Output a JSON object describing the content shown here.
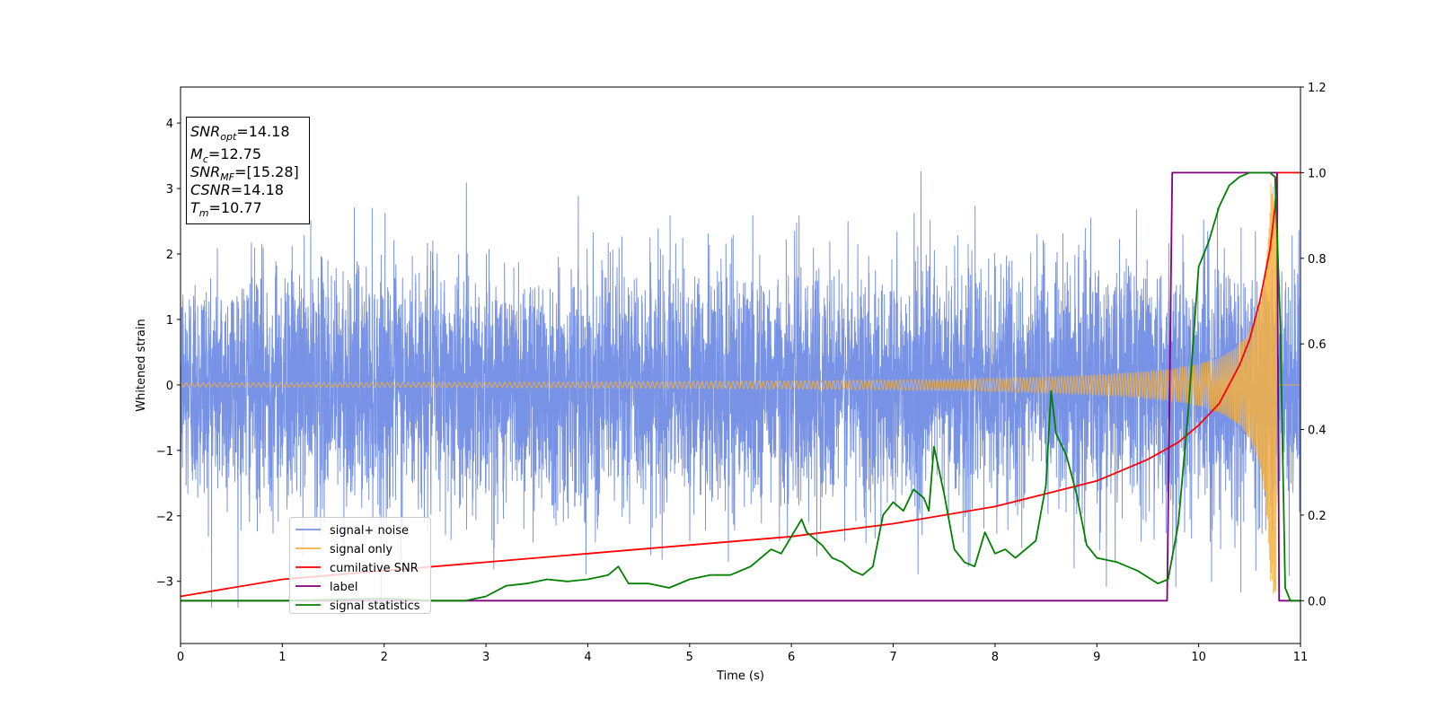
{
  "chart_data": {
    "type": "line",
    "title": "",
    "xlabel": "Time (s)",
    "ylabel": "Whitened strain",
    "xlim": [
      0,
      11
    ],
    "ylim": [
      -3.95,
      4.55
    ],
    "y2lim": [
      -0.1,
      1.2
    ],
    "x_ticks": [
      "0",
      "1",
      "2",
      "3",
      "4",
      "5",
      "6",
      "7",
      "8",
      "9",
      "10",
      "11"
    ],
    "y_ticks": [
      "4",
      "3",
      "2",
      "1",
      "0",
      "−1",
      "−2",
      "−3"
    ],
    "y2_ticks": [
      "1.2",
      "1.0",
      "0.8",
      "0.6",
      "0.4",
      "0.2",
      "0.0"
    ],
    "grid": false,
    "legend_position": "lower-left",
    "series": [
      {
        "name": "signal+ noise",
        "color": "#7893e6",
        "axis": "left",
        "description": "dense noise band, roughly between -2 and 2",
        "noise_std": 0.9,
        "x_range": [
          0,
          11
        ],
        "y_min": -3.4,
        "y_max": 4.18
      },
      {
        "name": "signal only",
        "color": "#f5b041",
        "axis": "left",
        "chirp": {
          "t_merge": 10.77,
          "base_amplitude": 0.03,
          "peak_amplitude": 3.2
        }
      },
      {
        "name": "cumilative SNR",
        "color": "#ff0000",
        "axis": "right",
        "x": [
          0,
          1,
          2,
          3,
          4,
          5,
          6,
          7,
          8,
          8.5,
          9,
          9.5,
          9.8,
          10,
          10.2,
          10.4,
          10.5,
          10.6,
          10.7,
          10.75,
          10.77,
          11
        ],
        "y": [
          0.01,
          0.05,
          0.07,
          0.09,
          0.11,
          0.13,
          0.15,
          0.18,
          0.22,
          0.25,
          0.28,
          0.33,
          0.37,
          0.41,
          0.46,
          0.55,
          0.61,
          0.7,
          0.82,
          0.92,
          1.0,
          1.0
        ]
      },
      {
        "name": "label",
        "color": "#800080",
        "axis": "right",
        "x": [
          0,
          9.69,
          9.74,
          10.77,
          10.79,
          11
        ],
        "y": [
          0,
          0,
          1,
          1,
          0,
          0
        ]
      },
      {
        "name": "signal statistics",
        "color": "#008000",
        "axis": "right",
        "x": [
          0,
          1,
          2,
          2.5,
          2.8,
          3.0,
          3.2,
          3.4,
          3.6,
          3.8,
          4.0,
          4.2,
          4.3,
          4.4,
          4.6,
          4.8,
          5.0,
          5.2,
          5.4,
          5.6,
          5.8,
          5.9,
          6.1,
          6.15,
          6.2,
          6.3,
          6.4,
          6.5,
          6.6,
          6.7,
          6.8,
          6.9,
          7.0,
          7.1,
          7.2,
          7.3,
          7.35,
          7.4,
          7.5,
          7.6,
          7.7,
          7.8,
          7.9,
          8.0,
          8.1,
          8.2,
          8.3,
          8.4,
          8.5,
          8.55,
          8.6,
          8.7,
          8.8,
          8.9,
          9.0,
          9.2,
          9.4,
          9.6,
          9.7,
          9.8,
          9.9,
          10.0,
          10.1,
          10.2,
          10.3,
          10.4,
          10.5,
          10.6,
          10.7,
          10.75,
          10.8,
          10.85,
          10.9,
          11
        ],
        "y": [
          0,
          0,
          0.005,
          0.0,
          0.0,
          0.01,
          0.035,
          0.04,
          0.05,
          0.045,
          0.05,
          0.06,
          0.08,
          0.04,
          0.04,
          0.03,
          0.05,
          0.06,
          0.06,
          0.08,
          0.12,
          0.11,
          0.19,
          0.16,
          0.15,
          0.13,
          0.1,
          0.09,
          0.07,
          0.06,
          0.08,
          0.2,
          0.23,
          0.21,
          0.26,
          0.24,
          0.21,
          0.36,
          0.25,
          0.12,
          0.09,
          0.08,
          0.16,
          0.11,
          0.12,
          0.1,
          0.12,
          0.14,
          0.27,
          0.49,
          0.39,
          0.34,
          0.25,
          0.13,
          0.1,
          0.09,
          0.07,
          0.04,
          0.05,
          0.18,
          0.45,
          0.78,
          0.84,
          0.92,
          0.97,
          0.99,
          1.0,
          1.0,
          1.0,
          0.99,
          0.66,
          0.03,
          0.0,
          0.0
        ]
      }
    ],
    "annotation_box": {
      "lines": [
        {
          "main": "SNR",
          "sub": "opt",
          "rest": "=14.18"
        },
        {
          "main": "M",
          "sub": "c",
          "rest": "=12.75"
        },
        {
          "main": "SNR",
          "sub": "MF",
          "rest": "=[15.28]"
        },
        {
          "main": "CSNR",
          "sub": "",
          "rest": "=14.18"
        },
        {
          "main": "T",
          "sub": "m",
          "rest": "=10.77"
        }
      ]
    }
  }
}
